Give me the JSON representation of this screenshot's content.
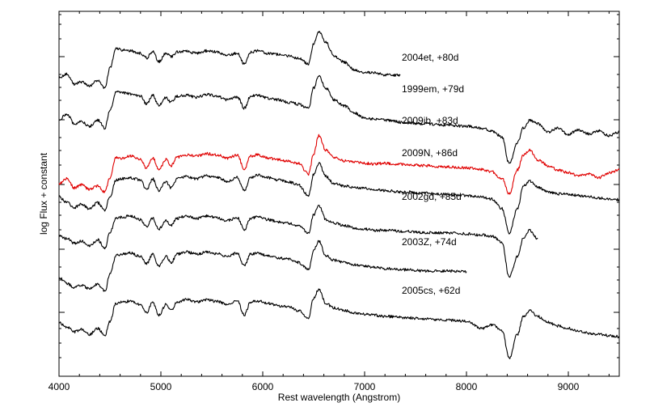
{
  "chart_data": {
    "type": "line",
    "title": "",
    "xlabel": "Rest wavelength (Angstrom)",
    "ylabel": "log Flux + constant",
    "xlim": [
      4000,
      9500
    ],
    "x_ticks": [
      4000,
      5000,
      6000,
      7000,
      8000,
      9000
    ],
    "y_ticks_labeled": false,
    "grid": false,
    "line_colors": {
      "default": "#000000",
      "highlight": "#e00000"
    },
    "series": [
      {
        "name": "2004et, +80d",
        "color": "#000000",
        "x": [
          4000,
          4080,
          4150,
          4220,
          4300,
          4380,
          4450,
          4500,
          4560,
          4620,
          4700,
          4800,
          4860,
          4920,
          4980,
          5050,
          5100,
          5160,
          5250,
          5350,
          5450,
          5550,
          5650,
          5750,
          5820,
          5880,
          5950,
          6050,
          6150,
          6250,
          6350,
          6450,
          6500,
          6550,
          6620,
          6700,
          6800,
          6900,
          7000,
          7100,
          7200,
          7350
        ],
        "y": [
          8.4,
          8.45,
          8.28,
          8.32,
          8.25,
          8.35,
          8.22,
          8.55,
          8.88,
          8.85,
          8.84,
          8.8,
          8.72,
          8.83,
          8.66,
          8.8,
          8.74,
          8.82,
          8.83,
          8.8,
          8.84,
          8.82,
          8.76,
          8.8,
          8.62,
          8.82,
          8.84,
          8.8,
          8.78,
          8.75,
          8.72,
          8.62,
          8.96,
          9.16,
          8.98,
          8.75,
          8.65,
          8.52,
          8.48,
          8.47,
          8.44,
          8.43
        ]
      },
      {
        "name": "1999em, +79d",
        "color": "#000000",
        "x": [
          4000,
          4080,
          4150,
          4220,
          4300,
          4380,
          4450,
          4500,
          4560,
          4620,
          4700,
          4800,
          4860,
          4920,
          4980,
          5050,
          5100,
          5160,
          5250,
          5350,
          5450,
          5550,
          5650,
          5750,
          5820,
          5880,
          5950,
          6050,
          6150,
          6250,
          6350,
          6450,
          6500,
          6550,
          6620,
          6700,
          6800,
          6900,
          7000,
          7100,
          7200,
          7400,
          7600,
          7800,
          8000,
          8150,
          8250,
          8350,
          8420,
          8500,
          8560,
          8620,
          8700,
          8800,
          8900,
          9000,
          9100,
          9200,
          9300,
          9400,
          9500
        ],
        "y": [
          7.7,
          7.78,
          7.62,
          7.66,
          7.58,
          7.68,
          7.55,
          7.85,
          8.15,
          8.14,
          8.12,
          8.08,
          7.95,
          8.1,
          7.92,
          8.06,
          7.98,
          8.08,
          8.1,
          8.06,
          8.11,
          8.08,
          8.02,
          8.07,
          7.88,
          8.08,
          8.1,
          8.05,
          8.02,
          7.98,
          7.95,
          7.88,
          8.22,
          8.42,
          8.22,
          8.02,
          7.92,
          7.8,
          7.72,
          7.7,
          7.68,
          7.64,
          7.62,
          7.6,
          7.58,
          7.55,
          7.5,
          7.4,
          6.95,
          7.3,
          7.55,
          7.68,
          7.62,
          7.48,
          7.55,
          7.44,
          7.52,
          7.45,
          7.5,
          7.42,
          7.48
        ]
      },
      {
        "name": "2009ib, +83d",
        "color": "#e00000",
        "x": [
          4000,
          4080,
          4150,
          4220,
          4300,
          4380,
          4450,
          4500,
          4560,
          4620,
          4700,
          4800,
          4860,
          4920,
          4980,
          5050,
          5100,
          5160,
          5250,
          5350,
          5450,
          5550,
          5650,
          5750,
          5820,
          5880,
          5950,
          6050,
          6150,
          6250,
          6350,
          6450,
          6500,
          6550,
          6620,
          6700,
          6800,
          6900,
          7000,
          7100,
          7200,
          7400,
          7600,
          7800,
          8000,
          8150,
          8250,
          8350,
          8420,
          8500,
          8560,
          8620,
          8700,
          8800,
          8900,
          9000,
          9100,
          9200,
          9300,
          9400,
          9500
        ],
        "y": [
          6.62,
          6.7,
          6.55,
          6.6,
          6.52,
          6.58,
          6.48,
          6.72,
          7.06,
          7.04,
          7.08,
          7.02,
          6.88,
          7.05,
          6.85,
          7.02,
          6.92,
          7.06,
          7.1,
          7.08,
          7.12,
          7.1,
          7.04,
          7.1,
          6.86,
          7.08,
          7.1,
          7.05,
          7.02,
          7.0,
          6.96,
          6.78,
          7.12,
          7.42,
          7.18,
          7.05,
          7.0,
          6.98,
          6.96,
          6.95,
          6.96,
          6.94,
          6.92,
          6.9,
          6.88,
          6.86,
          6.82,
          6.7,
          6.45,
          6.85,
          7.1,
          7.18,
          7.02,
          6.92,
          6.85,
          6.8,
          6.75,
          6.78,
          6.72,
          6.8,
          6.85
        ]
      },
      {
        "name": "2009N, +86d",
        "color": "#000000",
        "x": [
          4000,
          4080,
          4150,
          4220,
          4300,
          4380,
          4450,
          4500,
          4560,
          4620,
          4700,
          4800,
          4860,
          4920,
          4980,
          5050,
          5100,
          5160,
          5250,
          5350,
          5450,
          5550,
          5650,
          5750,
          5820,
          5880,
          5950,
          6050,
          6150,
          6250,
          6350,
          6450,
          6500,
          6550,
          6620,
          6700,
          6800,
          6900,
          7000,
          7100,
          7200,
          7400,
          7600,
          7800,
          8000,
          8150,
          8250,
          8350,
          8420,
          8500,
          8560,
          8620,
          8700,
          8800,
          8900,
          9000,
          9100,
          9200,
          9300,
          9400,
          9500
        ],
        "y": [
          6.4,
          6.3,
          6.22,
          6.28,
          6.2,
          6.3,
          6.18,
          6.4,
          6.68,
          6.7,
          6.72,
          6.68,
          6.52,
          6.7,
          6.5,
          6.65,
          6.55,
          6.7,
          6.74,
          6.7,
          6.75,
          6.72,
          6.66,
          6.72,
          6.5,
          6.72,
          6.76,
          6.72,
          6.68,
          6.65,
          6.6,
          6.42,
          6.78,
          6.96,
          6.74,
          6.62,
          6.58,
          6.55,
          6.54,
          6.52,
          6.5,
          6.48,
          6.46,
          6.44,
          6.42,
          6.4,
          6.36,
          6.2,
          5.8,
          6.2,
          6.58,
          6.66,
          6.56,
          6.48,
          6.45,
          6.44,
          6.42,
          6.4,
          6.38,
          6.36,
          6.35
        ]
      },
      {
        "name": "2002gd, +85d",
        "color": "#000000",
        "x": [
          4000,
          4080,
          4150,
          4220,
          4300,
          4380,
          4450,
          4500,
          4560,
          4620,
          4700,
          4800,
          4860,
          4920,
          4980,
          5050,
          5100,
          5160,
          5250,
          5350,
          5450,
          5550,
          5650,
          5750,
          5820,
          5880,
          5950,
          6050,
          6150,
          6250,
          6350,
          6450,
          6500,
          6550,
          6620,
          6700,
          6800,
          6900,
          7000,
          7100,
          7200,
          7400,
          7600,
          7800,
          8000,
          8150,
          8250,
          8350,
          8420,
          8500,
          8560,
          8620,
          8700
        ],
        "y": [
          5.75,
          5.7,
          5.62,
          5.66,
          5.58,
          5.68,
          5.54,
          5.8,
          6.05,
          6.06,
          6.08,
          6.02,
          5.9,
          6.04,
          5.86,
          6.0,
          5.92,
          6.04,
          6.08,
          6.04,
          6.08,
          6.05,
          6.0,
          6.05,
          5.85,
          6.04,
          6.06,
          6.02,
          5.98,
          5.96,
          5.92,
          5.8,
          6.1,
          6.26,
          6.02,
          5.96,
          5.92,
          5.88,
          5.86,
          5.84,
          5.84,
          5.82,
          5.8,
          5.8,
          5.78,
          5.76,
          5.74,
          5.64,
          5.05,
          5.4,
          5.72,
          5.84,
          5.7
        ]
      },
      {
        "name": "2003Z, +74d",
        "color": "#000000",
        "x": [
          4000,
          4080,
          4150,
          4220,
          4300,
          4380,
          4450,
          4500,
          4560,
          4620,
          4700,
          4800,
          4860,
          4920,
          4980,
          5050,
          5100,
          5160,
          5250,
          5350,
          5450,
          5550,
          5650,
          5750,
          5820,
          5880,
          5950,
          6050,
          6150,
          6250,
          6350,
          6450,
          6500,
          6550,
          6620,
          6700,
          6800,
          6900,
          7000,
          7100,
          7200,
          7400,
          7600,
          7800,
          8000
        ],
        "y": [
          5.05,
          4.95,
          4.88,
          4.92,
          4.86,
          4.94,
          4.82,
          5.1,
          5.42,
          5.44,
          5.46,
          5.4,
          5.28,
          5.44,
          5.24,
          5.4,
          5.3,
          5.44,
          5.48,
          5.44,
          5.48,
          5.45,
          5.4,
          5.46,
          5.24,
          5.44,
          5.46,
          5.42,
          5.38,
          5.36,
          5.3,
          5.18,
          5.5,
          5.66,
          5.42,
          5.34,
          5.3,
          5.26,
          5.24,
          5.22,
          5.2,
          5.18,
          5.16,
          5.16,
          5.15
        ]
      },
      {
        "name": "2005cs, +62d",
        "color": "#000000",
        "x": [
          4000,
          4080,
          4150,
          4220,
          4300,
          4380,
          4450,
          4500,
          4560,
          4620,
          4700,
          4800,
          4860,
          4920,
          4980,
          5050,
          5100,
          5160,
          5250,
          5350,
          5450,
          5550,
          5650,
          5750,
          5820,
          5880,
          5950,
          6050,
          6150,
          6250,
          6350,
          6450,
          6500,
          6550,
          6620,
          6700,
          6800,
          6900,
          7000,
          7100,
          7200,
          7400,
          7600,
          7800,
          8000,
          8150,
          8250,
          8350,
          8420,
          8500,
          8560,
          8620,
          8700,
          8800,
          8900,
          9000,
          9100,
          9200,
          9300,
          9400,
          9500
        ],
        "y": [
          4.3,
          4.22,
          4.14,
          4.18,
          4.1,
          4.2,
          4.08,
          4.32,
          4.62,
          4.64,
          4.66,
          4.6,
          4.46,
          4.64,
          4.42,
          4.6,
          4.5,
          4.64,
          4.68,
          4.64,
          4.68,
          4.65,
          4.6,
          4.66,
          4.42,
          4.64,
          4.66,
          4.62,
          4.58,
          4.56,
          4.5,
          4.38,
          4.7,
          4.86,
          4.62,
          4.54,
          4.5,
          4.46,
          4.44,
          4.42,
          4.4,
          4.38,
          4.36,
          4.34,
          4.32,
          4.2,
          4.26,
          4.16,
          3.7,
          4.1,
          4.4,
          4.5,
          4.4,
          4.3,
          4.24,
          4.2,
          4.16,
          4.12,
          4.1,
          4.08,
          4.06
        ]
      }
    ]
  }
}
